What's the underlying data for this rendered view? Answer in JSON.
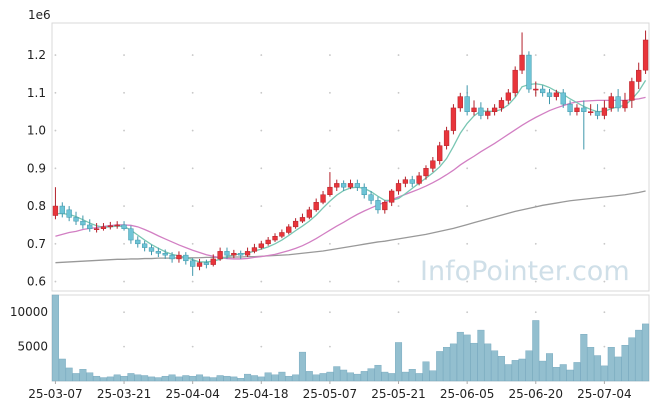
{
  "chart_data": {
    "type": "candlestick",
    "price_scale_label": "1e6",
    "watermark": "InfoPointer.com",
    "y_ticks": [
      0.6,
      0.7,
      0.8,
      0.9,
      1.0,
      1.1,
      1.2
    ],
    "y_tick_labels": [
      "0.6",
      "0.7",
      "0.8",
      "0.9",
      "1.0",
      "1.1",
      "1.2"
    ],
    "ylim": [
      0.575,
      1.285
    ],
    "volume_ticks": [
      5000,
      10000
    ],
    "volume_tick_labels": [
      "5000",
      "10000"
    ],
    "volume_ylim": [
      0,
      12500
    ],
    "x_tick_labels": [
      "25-03-07",
      "25-03-21",
      "25-04-04",
      "25-04-18",
      "25-05-07",
      "25-05-21",
      "25-06-05",
      "25-06-20",
      "25-07-04"
    ],
    "dates": [
      "25-03-07",
      "25-03-10",
      "25-03-11",
      "25-03-12",
      "25-03-13",
      "25-03-14",
      "25-03-17",
      "25-03-18",
      "25-03-19",
      "25-03-20",
      "25-03-21",
      "25-03-24",
      "25-03-25",
      "25-03-26",
      "25-03-27",
      "25-03-28",
      "25-03-31",
      "25-04-01",
      "25-04-02",
      "25-04-03",
      "25-04-04",
      "25-04-07",
      "25-04-08",
      "25-04-09",
      "25-04-10",
      "25-04-11",
      "25-04-14",
      "25-04-15",
      "25-04-16",
      "25-04-17",
      "25-04-18",
      "25-04-21",
      "25-04-22",
      "25-04-23",
      "25-04-24",
      "25-04-25",
      "25-04-28",
      "25-04-29",
      "25-04-30",
      "25-05-02",
      "25-05-07",
      "25-05-08",
      "25-05-09",
      "25-05-12",
      "25-05-13",
      "25-05-14",
      "25-05-15",
      "25-05-16",
      "25-05-19",
      "25-05-20",
      "25-05-21",
      "25-05-22",
      "25-05-23",
      "25-05-26",
      "25-05-27",
      "25-05-28",
      "25-05-29",
      "25-05-30",
      "25-06-02",
      "25-06-04",
      "25-06-05",
      "25-06-09",
      "25-06-10",
      "25-06-11",
      "25-06-12",
      "25-06-13",
      "25-06-16",
      "25-06-17",
      "25-06-18",
      "25-06-19",
      "25-06-20",
      "25-06-23",
      "25-06-24",
      "25-06-25",
      "25-06-26",
      "25-06-27",
      "25-06-30",
      "25-07-01",
      "25-07-02",
      "25-07-03",
      "25-07-04",
      "25-07-07",
      "25-07-08",
      "25-07-09",
      "25-07-10",
      "25-07-11",
      "25-07-14"
    ],
    "open": [
      0.775,
      0.8,
      0.79,
      0.77,
      0.76,
      0.75,
      0.74,
      0.74,
      0.745,
      0.748,
      0.75,
      0.74,
      0.71,
      0.7,
      0.69,
      0.68,
      0.675,
      0.67,
      0.66,
      0.67,
      0.655,
      0.64,
      0.65,
      0.645,
      0.66,
      0.68,
      0.67,
      0.675,
      0.67,
      0.68,
      0.69,
      0.7,
      0.71,
      0.72,
      0.73,
      0.745,
      0.76,
      0.77,
      0.79,
      0.81,
      0.83,
      0.85,
      0.86,
      0.85,
      0.86,
      0.85,
      0.83,
      0.815,
      0.79,
      0.81,
      0.84,
      0.86,
      0.87,
      0.86,
      0.88,
      0.9,
      0.92,
      0.96,
      1.0,
      1.06,
      1.09,
      1.05,
      1.06,
      1.04,
      1.05,
      1.06,
      1.08,
      1.1,
      1.16,
      1.2,
      1.11,
      1.11,
      1.1,
      1.09,
      1.1,
      1.07,
      1.05,
      1.06,
      1.05,
      1.05,
      1.04,
      1.06,
      1.09,
      1.06,
      1.08,
      1.13,
      1.16
    ],
    "close": [
      0.8,
      0.78,
      0.77,
      0.76,
      0.75,
      0.74,
      0.74,
      0.745,
      0.748,
      0.75,
      0.74,
      0.71,
      0.7,
      0.69,
      0.68,
      0.675,
      0.67,
      0.66,
      0.67,
      0.655,
      0.64,
      0.65,
      0.645,
      0.66,
      0.68,
      0.67,
      0.675,
      0.67,
      0.68,
      0.69,
      0.7,
      0.71,
      0.72,
      0.73,
      0.745,
      0.76,
      0.77,
      0.79,
      0.81,
      0.83,
      0.85,
      0.86,
      0.85,
      0.86,
      0.85,
      0.83,
      0.815,
      0.79,
      0.81,
      0.84,
      0.86,
      0.87,
      0.86,
      0.88,
      0.9,
      0.92,
      0.96,
      1.0,
      1.06,
      1.09,
      1.05,
      1.06,
      1.04,
      1.05,
      1.06,
      1.08,
      1.1,
      1.16,
      1.2,
      1.11,
      1.11,
      1.1,
      1.09,
      1.1,
      1.07,
      1.05,
      1.06,
      1.05,
      1.05,
      1.04,
      1.06,
      1.09,
      1.06,
      1.08,
      1.13,
      1.16,
      1.24
    ],
    "high": [
      0.85,
      0.81,
      0.8,
      0.785,
      0.775,
      0.765,
      0.755,
      0.755,
      0.758,
      0.76,
      0.76,
      0.748,
      0.72,
      0.708,
      0.698,
      0.69,
      0.685,
      0.678,
      0.68,
      0.678,
      0.662,
      0.66,
      0.658,
      0.672,
      0.69,
      0.69,
      0.684,
      0.682,
      0.69,
      0.7,
      0.708,
      0.718,
      0.728,
      0.738,
      0.752,
      0.768,
      0.78,
      0.798,
      0.82,
      0.84,
      0.89,
      0.87,
      0.868,
      0.87,
      0.87,
      0.86,
      0.84,
      0.825,
      0.815,
      0.845,
      0.87,
      0.878,
      0.88,
      0.89,
      0.908,
      0.93,
      0.97,
      1.01,
      1.07,
      1.1,
      1.12,
      1.08,
      1.075,
      1.06,
      1.07,
      1.088,
      1.11,
      1.17,
      1.26,
      1.21,
      1.13,
      1.12,
      1.11,
      1.108,
      1.11,
      1.08,
      1.07,
      1.08,
      1.07,
      1.07,
      1.08,
      1.1,
      1.11,
      1.1,
      1.14,
      1.18,
      1.265
    ],
    "low": [
      0.765,
      0.77,
      0.76,
      0.75,
      0.74,
      0.732,
      0.73,
      0.735,
      0.738,
      0.74,
      0.735,
      0.7,
      0.69,
      0.68,
      0.67,
      0.665,
      0.66,
      0.65,
      0.65,
      0.645,
      0.615,
      0.63,
      0.635,
      0.64,
      0.655,
      0.66,
      0.662,
      0.66,
      0.665,
      0.675,
      0.685,
      0.695,
      0.705,
      0.715,
      0.725,
      0.74,
      0.755,
      0.765,
      0.785,
      0.805,
      0.825,
      0.84,
      0.84,
      0.845,
      0.84,
      0.82,
      0.805,
      0.78,
      0.78,
      0.8,
      0.83,
      0.85,
      0.85,
      0.855,
      0.87,
      0.89,
      0.91,
      0.95,
      0.99,
      1.05,
      1.04,
      1.04,
      1.03,
      1.03,
      1.04,
      1.05,
      1.07,
      1.09,
      1.15,
      1.1,
      1.09,
      1.09,
      1.07,
      1.08,
      1.06,
      1.04,
      1.04,
      0.95,
      1.04,
      1.03,
      1.03,
      1.05,
      1.05,
      1.05,
      1.06,
      1.11,
      1.15
    ],
    "volume": [
      12500,
      3200,
      1900,
      1100,
      1700,
      1200,
      700,
      500,
      600,
      900,
      700,
      1100,
      900,
      800,
      600,
      500,
      700,
      900,
      600,
      800,
      700,
      900,
      600,
      500,
      800,
      700,
      600,
      400,
      1000,
      800,
      600,
      1200,
      900,
      1300,
      700,
      900,
      4200,
      1400,
      900,
      1100,
      1300,
      2100,
      1600,
      1200,
      1000,
      1400,
      1800,
      2300,
      1300,
      1100,
      5600,
      1300,
      1700,
      1100,
      2800,
      1500,
      4300,
      4900,
      5400,
      7100,
      6700,
      5500,
      7400,
      5400,
      4400,
      3600,
      2400,
      3000,
      3200,
      4400,
      8800,
      2900,
      4000,
      2000,
      2400,
      1600,
      2700,
      6800,
      4900,
      3700,
      2200,
      4900,
      3500,
      5200,
      6300,
      7400,
      8300
    ],
    "ma_short": [
      0.78,
      0.78,
      0.778,
      0.772,
      0.764,
      0.755,
      0.748,
      0.744,
      0.745,
      0.747,
      0.746,
      0.736,
      0.723,
      0.71,
      0.698,
      0.688,
      0.679,
      0.672,
      0.668,
      0.664,
      0.658,
      0.652,
      0.652,
      0.654,
      0.659,
      0.666,
      0.671,
      0.673,
      0.675,
      0.681,
      0.686,
      0.692,
      0.7,
      0.71,
      0.722,
      0.735,
      0.747,
      0.76,
      0.776,
      0.795,
      0.813,
      0.829,
      0.841,
      0.848,
      0.85,
      0.847,
      0.838,
      0.826,
      0.815,
      0.815,
      0.82,
      0.833,
      0.847,
      0.861,
      0.874,
      0.888,
      0.904,
      0.926,
      0.958,
      0.993,
      1.019,
      1.039,
      1.052,
      1.051,
      1.051,
      1.056,
      1.068,
      1.088,
      1.116,
      1.122,
      1.124,
      1.121,
      1.114,
      1.104,
      1.096,
      1.084,
      1.074,
      1.064,
      1.056,
      1.05,
      1.051,
      1.058,
      1.063,
      1.067,
      1.083,
      1.104,
      1.133
    ],
    "ma_mid": [
      0.72,
      0.725,
      0.73,
      0.733,
      0.738,
      0.741,
      0.743,
      0.746,
      0.748,
      0.75,
      0.75,
      0.749,
      0.745,
      0.738,
      0.73,
      0.721,
      0.713,
      0.705,
      0.697,
      0.69,
      0.683,
      0.677,
      0.671,
      0.667,
      0.663,
      0.661,
      0.66,
      0.66,
      0.661,
      0.664,
      0.666,
      0.669,
      0.672,
      0.677,
      0.682,
      0.688,
      0.695,
      0.704,
      0.714,
      0.725,
      0.736,
      0.747,
      0.757,
      0.768,
      0.778,
      0.787,
      0.795,
      0.803,
      0.81,
      0.817,
      0.824,
      0.831,
      0.838,
      0.845,
      0.853,
      0.862,
      0.872,
      0.883,
      0.895,
      0.909,
      0.921,
      0.932,
      0.944,
      0.955,
      0.966,
      0.978,
      0.99,
      1.002,
      1.014,
      1.025,
      1.035,
      1.044,
      1.053,
      1.06,
      1.066,
      1.072,
      1.076,
      1.078,
      1.079,
      1.08,
      1.08,
      1.08,
      1.08,
      1.08,
      1.082,
      1.084,
      1.088
    ],
    "ma_long": [
      0.65,
      0.651,
      0.652,
      0.653,
      0.654,
      0.655,
      0.656,
      0.657,
      0.658,
      0.659,
      0.659,
      0.66,
      0.66,
      0.661,
      0.661,
      0.662,
      0.662,
      0.662,
      0.663,
      0.663,
      0.663,
      0.663,
      0.664,
      0.664,
      0.664,
      0.664,
      0.665,
      0.665,
      0.666,
      0.666,
      0.667,
      0.668,
      0.669,
      0.67,
      0.671,
      0.673,
      0.675,
      0.677,
      0.679,
      0.681,
      0.684,
      0.687,
      0.69,
      0.693,
      0.696,
      0.699,
      0.702,
      0.705,
      0.707,
      0.71,
      0.713,
      0.716,
      0.719,
      0.722,
      0.725,
      0.729,
      0.733,
      0.737,
      0.741,
      0.746,
      0.751,
      0.756,
      0.761,
      0.766,
      0.771,
      0.776,
      0.781,
      0.786,
      0.79,
      0.794,
      0.798,
      0.802,
      0.805,
      0.808,
      0.811,
      0.814,
      0.816,
      0.818,
      0.82,
      0.822,
      0.824,
      0.826,
      0.828,
      0.83,
      0.833,
      0.836,
      0.84
    ],
    "colors": {
      "up": "#e8353b",
      "down": "#6ec4d6",
      "volume_fill": "#93bfcf",
      "volume_edge": "#6fa3ba",
      "ma_short": "#79c6b3",
      "ma_mid": "#d27fc3",
      "ma_long": "#999999",
      "frame": "#d9d9d9",
      "grid_dot": "#c8c8c8"
    },
    "grid": "dotted"
  }
}
